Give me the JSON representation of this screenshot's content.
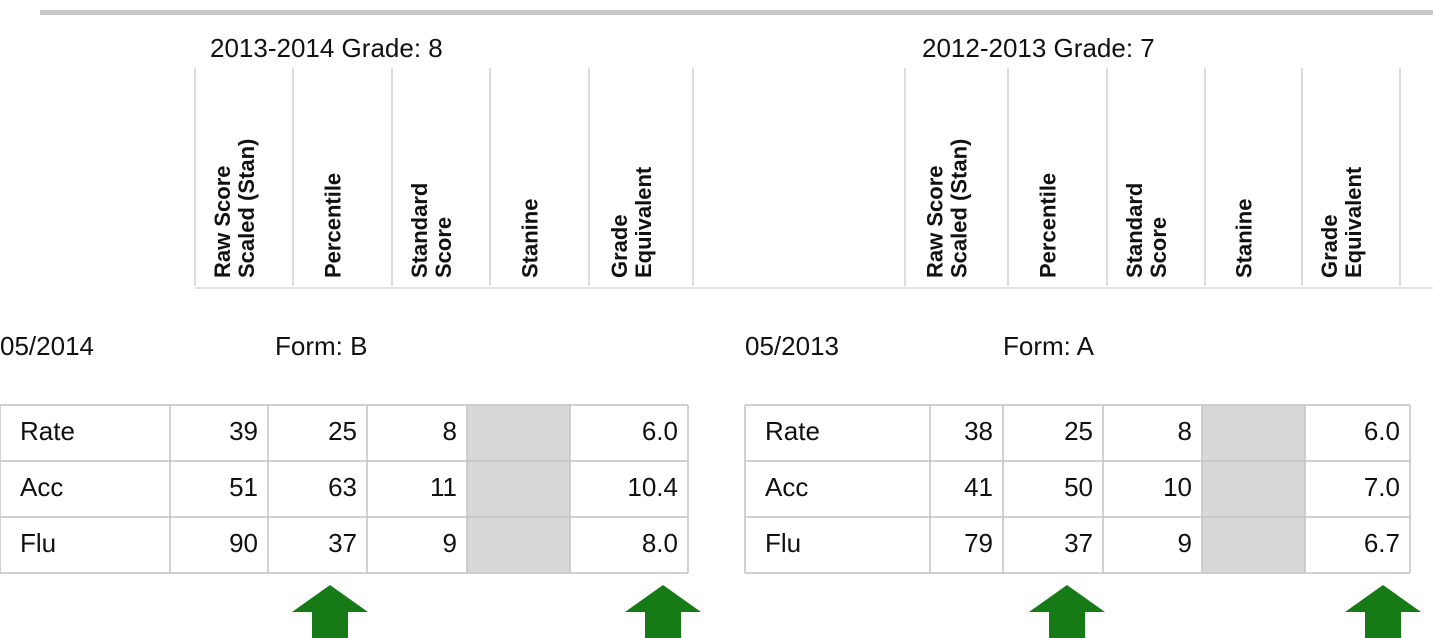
{
  "panels": [
    {
      "heading": "2013-2014 Grade: 8",
      "columns": [
        [
          "Raw Score",
          "Scaled (Stan)"
        ],
        [
          "Percentile"
        ],
        [
          "Standard",
          "Score"
        ],
        [
          "Stanine"
        ],
        [
          "Grade",
          "Equivalent"
        ]
      ],
      "date": "05/2014",
      "form": "Form: B",
      "rows": [
        {
          "label": "Rate",
          "cells": [
            "39",
            "25",
            "8",
            "6.0"
          ]
        },
        {
          "label": "Acc",
          "cells": [
            "51",
            "63",
            "11",
            "10.4"
          ]
        },
        {
          "label": "Flu",
          "cells": [
            "90",
            "37",
            "9",
            "8.0"
          ]
        }
      ]
    },
    {
      "heading": "2012-2013 Grade: 7",
      "columns": [
        [
          "Raw Score",
          "Scaled (Stan)"
        ],
        [
          "Percentile"
        ],
        [
          "Standard",
          "Score"
        ],
        [
          "Stanine"
        ],
        [
          "Grade",
          "Equivalent"
        ]
      ],
      "date": "05/2013",
      "form": "Form: A",
      "rows": [
        {
          "label": "Rate",
          "cells": [
            "38",
            "25",
            "8",
            "6.0"
          ]
        },
        {
          "label": "Acc",
          "cells": [
            "41",
            "50",
            "10",
            "7.0"
          ]
        },
        {
          "label": "Flu",
          "cells": [
            "79",
            "37",
            "9",
            "6.7"
          ]
        }
      ]
    }
  ]
}
